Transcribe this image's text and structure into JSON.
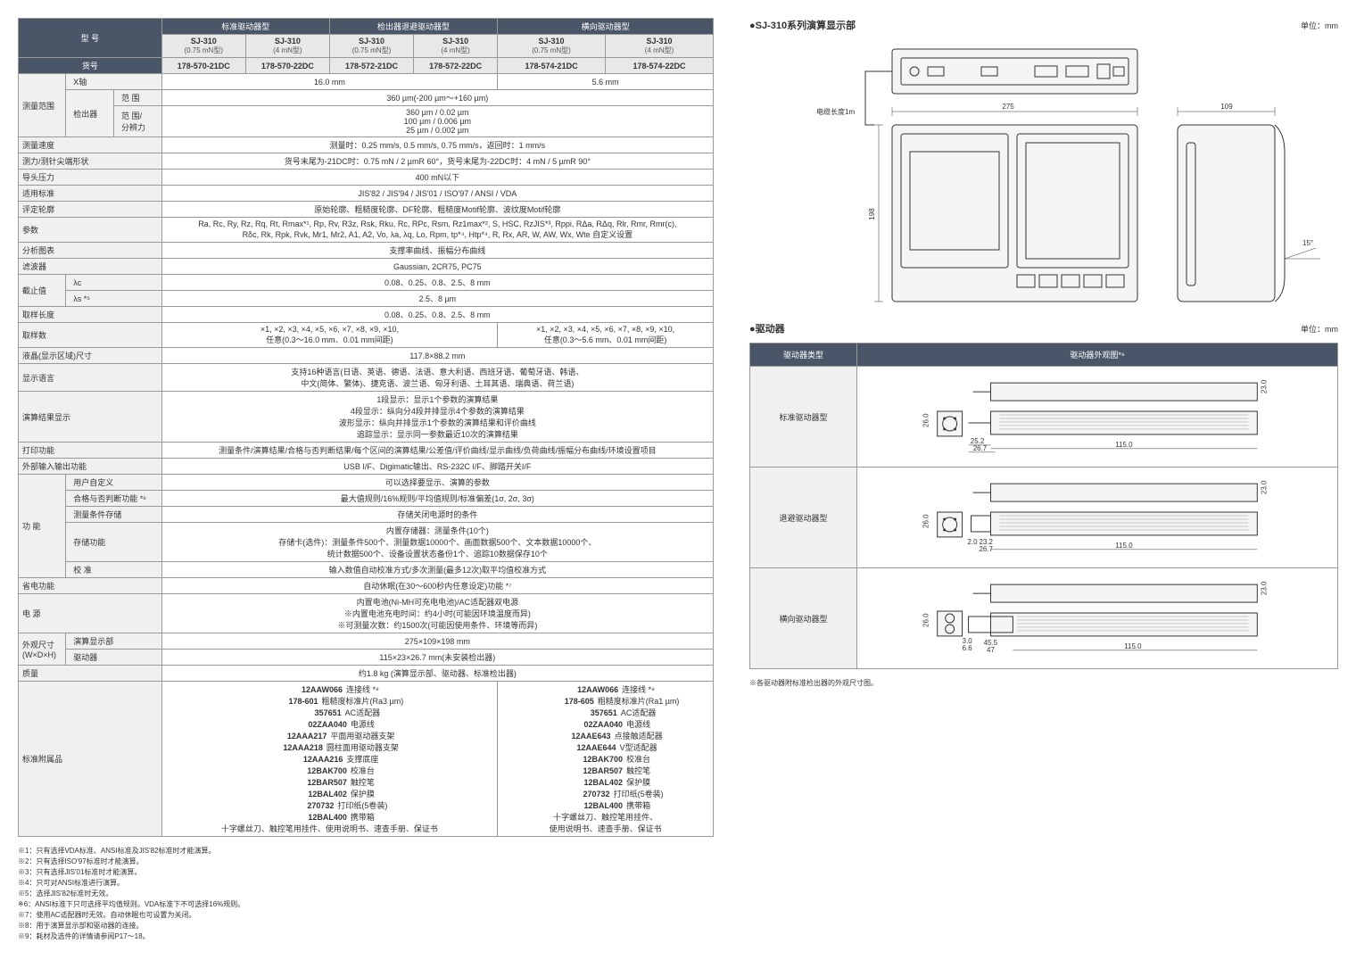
{
  "left_table": {
    "header_groups": [
      "标准驱动器型",
      "检出器退避驱动器型",
      "横向驱动器型"
    ],
    "model_row_label": "型 号",
    "model": "SJ-310",
    "variants": [
      "(0.75 mN型)",
      "(4 mN型)",
      "(0.75 mN型)",
      "(4 mN型)",
      "(0.75 mN型)",
      "(4 mN型)"
    ],
    "code_label": "货号",
    "codes": [
      "178-570-21DC",
      "178-570-22DC",
      "178-572-21DC",
      "178-572-22DC",
      "178-574-21DC",
      "178-574-22DC"
    ],
    "rows": [
      {
        "label": "测量范围",
        "sub": [
          "X轴"
        ],
        "cells": [
          {
            "span": 4,
            "val": "16.0 mm"
          },
          {
            "span": 2,
            "val": "5.6 mm"
          }
        ]
      },
      {
        "sub_of": 0,
        "subrows": [
          {
            "label": "检出器",
            "sublabel": "范 围",
            "val": "360 µm(-200 µm～+160 µm)"
          },
          {
            "sublabel": "范 围/\n分辨力",
            "val": "360 µm / 0.02 µm\n100 µm / 0.006 µm\n25 µm / 0.002 µm"
          }
        ]
      },
      {
        "label": "测量速度",
        "val": "测量时：0.25 mm/s, 0.5 mm/s, 0.75 mm/s，返回时：1 mm/s"
      },
      {
        "label": "测力/测针尖端形状",
        "val": "货号末尾为-21DC时：0.75 mN / 2 µmR 60°，货号末尾为-22DC时：4 mN / 5 µmR 90°"
      },
      {
        "label": "导头压力",
        "val": "400 mN以下"
      },
      {
        "label": "适用标准",
        "val": "JIS'82 / JIS'94 / JIS'01 / ISO'97 / ANSI / VDA"
      },
      {
        "label": "评定轮廓",
        "val": "原始轮廓、粗糙度轮廓、DF轮廓、粗糙度Motif轮廓、波纹度Motif轮廓"
      },
      {
        "label": "参数",
        "val": "Ra, Rc, Ry, Rz, Rq, Rt, Rmax*¹, Rp, Rv, R3z, Rsk, Rku, Rc, RPc, Rsm, Rz1max*², S, HSC, RzJIS*³, Rppi, RΔa, RΔq, Rlr, Rmr, Rmr(c),\nRδc, Rk, Rpk, Rvk, Mr1, Mr2, A1, A2, Vo, λa, λq, Lo, Rpm, tp*⁴, Htp*⁴, R, Rx, AR, W, AW, Wx, Wte 自定义设置"
      },
      {
        "label": "分析图表",
        "val": "支撑率曲线、振幅分布曲线"
      },
      {
        "label": "滤波器",
        "val": "Gaussian, 2CR75, PC75"
      },
      {
        "label": "截止值",
        "sub": [
          "λc",
          "λs *⁵"
        ],
        "vals": [
          "0.08、0.25、0.8、2.5、8 mm",
          "2.5、8 µm"
        ]
      },
      {
        "label": "取样长度",
        "val": "0.08、0.25、0.8、2.5、8 mm"
      },
      {
        "label": "取样数",
        "cells": [
          {
            "span": 4,
            "val": "×1, ×2, ×3, ×4, ×5, ×6, ×7, ×8, ×9, ×10,\n任意(0.3～16.0 mm、0.01 mm间距)"
          },
          {
            "span": 2,
            "val": "×1, ×2, ×3, ×4, ×5, ×6, ×7, ×8, ×9, ×10,\n任意(0.3～5.6 mm、0.01 mm间距)"
          }
        ]
      },
      {
        "label": "液晶(显示区域)尺寸",
        "val": "117.8×88.2 mm"
      },
      {
        "label": "显示语言",
        "val": "支持16种语言(日语、英语、德语、法语、意大利语、西班牙语、葡萄牙语、韩语、\n中文(简体、繁体)、捷克语、波兰语、匈牙利语、土耳其语、瑞典语、荷兰语)"
      },
      {
        "label": "演算结果显示",
        "val": "1段显示：显示1个参数的演算结果\n4段显示：纵向分4段并排显示4个参数的演算结果\n波形显示：纵向并排显示1个参数的演算结果和评价曲线\n追踪显示：显示同一参数最近10次的演算结果"
      },
      {
        "label": "打印功能",
        "val": "测量条件/演算结果/合格与否判断结果/每个区间的演算结果/公差值/评价曲线/显示曲线/负荷曲线/振幅分布曲线/环境设置项目"
      },
      {
        "label": "外部输入输出功能",
        "val": "USB I/F、Digimatic输出、RS-232C I/F、脚踏开关I/F"
      },
      {
        "label": "功 能",
        "subrows": [
          {
            "sublabel": "用户自定义",
            "val": "可以选择要显示、演算的参数"
          },
          {
            "sublabel": "合格与否判断功能 *⁶",
            "val": "最大值规则/16%规则/平均值规则/标准偏差(1σ, 2σ, 3σ)"
          },
          {
            "sublabel": "测量条件存储",
            "val": "存储关闭电源时的条件"
          },
          {
            "sublabel": "存储功能",
            "val": "内置存储器：测量条件(10个)\n存储卡(选件)：测量条件500个、测量数据10000个、画面数据500个、文本数据10000个、\n统计数据500个、设备设置状态备份1个、追踪10数据保存10个"
          },
          {
            "sublabel": "校 准",
            "val": "输入数值自动校准方式/多次测量(最多12次)取平均值校准方式"
          }
        ]
      },
      {
        "label": "省电功能",
        "val": "自动休眠(在30～600秒内任意设定)功能 *⁷"
      },
      {
        "label": "电 源",
        "val": "内置电池(Ni-MH可充电电池)/AC适配器双电源\n※内置电池充电时间：约4小时(可能因环境温度而异)\n※可测量次数：约1500次(可能因使用条件、环境等而异)"
      },
      {
        "label": "外观尺寸\n(W×D×H)",
        "subrows": [
          {
            "sublabel": "演算显示部",
            "val": "275×109×198 mm"
          },
          {
            "sublabel": "驱动器",
            "val": "115×23×26.7 mm(未安装检出器)"
          }
        ]
      },
      {
        "label": "质量",
        "val": "约1.8 kg (演算显示部、驱动器、标准检出器)"
      }
    ],
    "accessories_label": "标准附属品",
    "accessories_left": [
      {
        "code": "12AAW066",
        "desc": "连接线 *⁸"
      },
      {
        "code": "178-601",
        "desc": "粗糙度标准片(Ra3 µm)"
      },
      {
        "code": "357651",
        "desc": "AC适配器"
      },
      {
        "code": "02ZAA040",
        "desc": "电源线"
      },
      {
        "code": "12AAA217",
        "desc": "平面用驱动器支架"
      },
      {
        "code": "12AAA218",
        "desc": "圆柱面用驱动器支架"
      },
      {
        "code": "12AAA216",
        "desc": "支撑底座"
      },
      {
        "code": "12BAK700",
        "desc": "校准台"
      },
      {
        "code": "12BAR507",
        "desc": "触控笔"
      },
      {
        "code": "12BAL402",
        "desc": "保护膜"
      },
      {
        "code": "270732",
        "desc": "打印纸(5卷装)"
      },
      {
        "code": "12BAL400",
        "desc": "携带箱"
      }
    ],
    "accessories_right": [
      {
        "code": "12AAW066",
        "desc": "连接线 *⁸"
      },
      {
        "code": "178-605",
        "desc": "粗糙度标准片(Ra1 µm)"
      },
      {
        "code": "357651",
        "desc": "AC适配器"
      },
      {
        "code": "02ZAA040",
        "desc": "电源线"
      },
      {
        "code": "12AAE643",
        "desc": "点接触适配器"
      },
      {
        "code": "12AAE644",
        "desc": "V型适配器"
      },
      {
        "code": "12BAK700",
        "desc": "校准台"
      },
      {
        "code": "12BAR507",
        "desc": "触控笔"
      },
      {
        "code": "12BAL402",
        "desc": "保护膜"
      },
      {
        "code": "270732",
        "desc": "打印纸(5卷装)"
      },
      {
        "code": "12BAL400",
        "desc": "携带箱"
      }
    ],
    "accessories_bottom": "十字螺丝刀、触控笔用挂件、使用说明书、速查手册、保证书",
    "accessories_bottom_right": "十字螺丝刀、触控笔用挂件、\n使用说明书、速查手册、保证书"
  },
  "footnotes": [
    "※1：只有选择VDA标准、ANSI标准及JIS'82标准时才能演算。",
    "※2：只有选择ISO'97标准时才能演算。",
    "※3：只有选择JIS'01标准时才能演算。",
    "※4：只可对ANSI标准进行演算。",
    "※5：选择JIS'82标准时无效。",
    "※6：ANSI标准下只可选择平均值规则。VDA标准下不可选择16%规则。",
    "※7：使用AC适配器时无效。自动休眠也可设置为关闭。",
    "※8：用于演算显示部和驱动器的连接。",
    "※9：耗材及选件的详情请参阅P17～18。"
  ],
  "right": {
    "display_title": "●SJ-310系列演算显示部",
    "unit": "单位：mm",
    "dims": {
      "cable": "电缆长度1m",
      "w": "275",
      "side_w": "109",
      "h": "198",
      "angle": "15°"
    },
    "drive_title": "●驱动器",
    "drive_header": [
      "驱动器类型",
      "驱动器外观图*⁹"
    ],
    "drive_types": [
      "标准驱动器型",
      "退避驱动器型",
      "横向驱动器型"
    ],
    "drive_dims": {
      "std": {
        "h1": "23.0",
        "h2": "26.0",
        "w1": "25.2",
        "w2": "26.7",
        "len": "115.0"
      },
      "ret": {
        "h1": "23.0",
        "h2": "26.0",
        "gap": "2.0",
        "w1": "23.2",
        "w2": "26.7",
        "len": "115.0"
      },
      "lat": {
        "h1": "23.0",
        "h2": "26.0",
        "base": "3.0",
        "under": "6.6",
        "w1": "45.5",
        "w2": "47",
        "len": "115.0"
      }
    },
    "drive_footnote": "※各驱动器附标准检出器的外观尺寸图。"
  },
  "colors": {
    "header_bg": "#4a5568",
    "header_fg": "#ffffff",
    "label_bg": "#f0f0f0",
    "border": "#999999"
  }
}
